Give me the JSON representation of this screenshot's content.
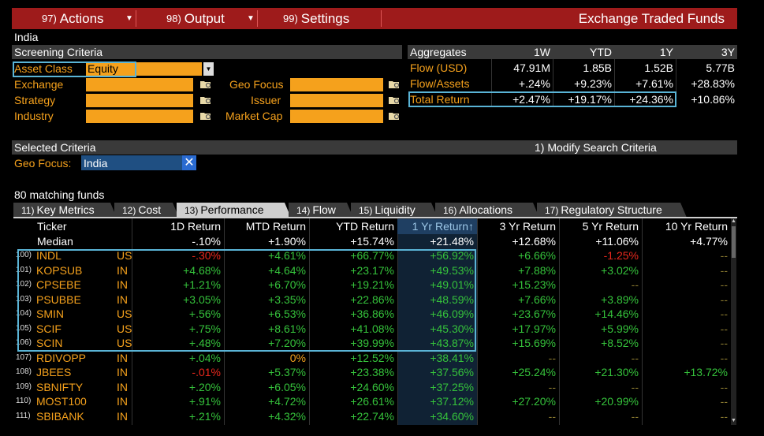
{
  "menu": {
    "actions": {
      "num": "97)",
      "label": "Actions"
    },
    "output": {
      "num": "98)",
      "label": "Output"
    },
    "settings": {
      "num": "99)",
      "label": "Settings"
    },
    "title": "Exchange Traded Funds"
  },
  "country": "India",
  "screening": {
    "header": "Screening Criteria",
    "asset_class_label": "Asset Class",
    "asset_class_value": "Equity",
    "exchange_label": "Exchange",
    "strategy_label": "Strategy",
    "industry_label": "Industry",
    "geo_focus_label": "Geo Focus",
    "issuer_label": "Issuer",
    "market_cap_label": "Market Cap"
  },
  "aggregates": {
    "header": "Aggregates",
    "columns": [
      "1W",
      "YTD",
      "1Y",
      "3Y"
    ],
    "rows": [
      {
        "label": "Flow (USD)",
        "values": [
          "47.91M",
          "1.85B",
          "1.52B",
          "5.77B"
        ]
      },
      {
        "label": "Flow/Assets",
        "values": [
          "+.24%",
          "+9.23%",
          "+7.61%",
          "+28.83%"
        ]
      },
      {
        "label": "Total Return",
        "values": [
          "+2.47%",
          "+19.17%",
          "+24.36%",
          "+10.86%"
        ]
      }
    ]
  },
  "selected": {
    "header": "Selected Criteria",
    "modify": "1) Modify Search Criteria",
    "geo_label": "Geo Focus:",
    "geo_value": "India",
    "remove": "✕"
  },
  "matching": "80 matching funds",
  "tabs": [
    {
      "num": "11)",
      "label": "Key Metrics"
    },
    {
      "num": "12)",
      "label": "Cost"
    },
    {
      "num": "13)",
      "label": "Performance"
    },
    {
      "num": "14)",
      "label": "Flow"
    },
    {
      "num": "15)",
      "label": "Liquidity"
    },
    {
      "num": "16)",
      "label": "Allocations"
    },
    {
      "num": "17)",
      "label": "Regulatory Structure"
    }
  ],
  "table": {
    "columns": [
      "Ticker",
      "1D Return",
      "MTD Return",
      "YTD Return",
      "1 Yr Return↑",
      "3 Yr Return",
      "5 Yr Return",
      "10 Yr Return"
    ],
    "median": {
      "label": "Median",
      "values": [
        "-.10%",
        "+1.90%",
        "+15.74%",
        "+21.48%",
        "+12.68%",
        "+11.06%",
        "+4.77%"
      ]
    },
    "rows": [
      {
        "idx": "100)",
        "ticker": "INDL",
        "cc": "US",
        "values": [
          "-.30%",
          "+4.61%",
          "+66.77%",
          "+56.92%",
          "+6.66%",
          "-1.25%",
          "--"
        ]
      },
      {
        "idx": "101)",
        "ticker": "KOPSUB",
        "cc": "IN",
        "values": [
          "+4.68%",
          "+4.64%",
          "+23.17%",
          "+49.53%",
          "+7.88%",
          "+3.02%",
          "--"
        ]
      },
      {
        "idx": "102)",
        "ticker": "CPSEBE",
        "cc": "IN",
        "values": [
          "+1.21%",
          "+6.70%",
          "+19.21%",
          "+49.01%",
          "+15.23%",
          "--",
          "--"
        ]
      },
      {
        "idx": "103)",
        "ticker": "PSUBBE",
        "cc": "IN",
        "values": [
          "+3.05%",
          "+3.35%",
          "+22.86%",
          "+48.59%",
          "+7.66%",
          "+3.89%",
          "--"
        ]
      },
      {
        "idx": "104)",
        "ticker": "SMIN",
        "cc": "US",
        "values": [
          "+.56%",
          "+6.53%",
          "+36.86%",
          "+46.09%",
          "+23.67%",
          "+14.46%",
          "--"
        ]
      },
      {
        "idx": "105)",
        "ticker": "SCIF",
        "cc": "US",
        "values": [
          "+.75%",
          "+8.61%",
          "+41.08%",
          "+45.30%",
          "+17.97%",
          "+5.99%",
          "--"
        ]
      },
      {
        "idx": "106)",
        "ticker": "SCIN",
        "cc": "US",
        "values": [
          "+.48%",
          "+7.20%",
          "+39.99%",
          "+43.87%",
          "+15.69%",
          "+8.52%",
          "--"
        ]
      },
      {
        "idx": "107)",
        "ticker": "RDIVOPP",
        "cc": "IN",
        "values": [
          "+.04%",
          "0%",
          "+12.52%",
          "+38.41%",
          "--",
          "--",
          "--"
        ]
      },
      {
        "idx": "108)",
        "ticker": "JBEES",
        "cc": "IN",
        "values": [
          "-.01%",
          "+5.37%",
          "+23.38%",
          "+37.56%",
          "+25.24%",
          "+21.30%",
          "+13.72%"
        ]
      },
      {
        "idx": "109)",
        "ticker": "SBNIFTY",
        "cc": "IN",
        "values": [
          "+.20%",
          "+6.05%",
          "+24.60%",
          "+37.25%",
          "--",
          "--",
          "--"
        ]
      },
      {
        "idx": "110)",
        "ticker": "MOST100",
        "cc": "IN",
        "values": [
          "+.91%",
          "+4.72%",
          "+26.61%",
          "+37.12%",
          "+27.20%",
          "+20.99%",
          "--"
        ]
      },
      {
        "idx": "111)",
        "ticker": "SBIBANK",
        "cc": "IN",
        "values": [
          "+.21%",
          "+4.32%",
          "+22.74%",
          "+34.60%",
          "--",
          "--",
          "--"
        ]
      }
    ]
  },
  "colors": {
    "positive": "#35c23b",
    "negative": "#e8281d",
    "accent": "#f5a11c",
    "topbar": "#9e1b1b",
    "highlight": "#5ab4d6"
  }
}
